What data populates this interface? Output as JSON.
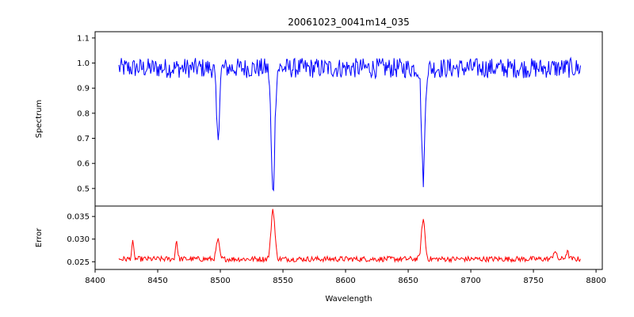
{
  "chart_data": [
    {
      "type": "line",
      "title": "20061023_0041m14_035",
      "xlabel": "",
      "ylabel": "Spectrum",
      "xlim": [
        8400,
        8805
      ],
      "ylim": [
        0.43,
        1.125
      ],
      "yticks": [
        0.5,
        0.6,
        0.7,
        0.8,
        0.9,
        1.0,
        1.1
      ],
      "ytick_labels": [
        "0.5",
        "0.6",
        "0.7",
        "0.8",
        "0.9",
        "1.0",
        "1.1"
      ],
      "grid": false,
      "legend": "none",
      "series": [
        {
          "color": "#0000ff",
          "x_range": [
            8419,
            8788
          ],
          "continuum": 0.98,
          "noise_amplitude": 0.04,
          "absorption_lines": [
            {
              "x": 8498,
              "depth": 0.28,
              "width": 1.2
            },
            {
              "x": 8542,
              "depth": 0.5,
              "width": 1.4
            },
            {
              "x": 8662,
              "depth": 0.44,
              "width": 1.3
            }
          ]
        }
      ]
    },
    {
      "type": "line",
      "title": "",
      "xlabel": "Wavelength",
      "ylabel": "Error",
      "xlim": [
        8400,
        8805
      ],
      "ylim": [
        0.0233,
        0.0373
      ],
      "xticks": [
        8400,
        8450,
        8500,
        8550,
        8600,
        8650,
        8700,
        8750,
        8800
      ],
      "xtick_labels": [
        "8400",
        "8450",
        "8500",
        "8550",
        "8600",
        "8650",
        "8700",
        "8750",
        "8800"
      ],
      "yticks": [
        0.025,
        0.03,
        0.035
      ],
      "ytick_labels": [
        "0.025",
        "0.030",
        "0.035"
      ],
      "grid": false,
      "legend": "none",
      "series": [
        {
          "color": "#ff0000",
          "x_range": [
            8419,
            8788
          ],
          "baseline": 0.0256,
          "noise_amplitude": 0.0006,
          "peaks": [
            {
              "x": 8430,
              "height": 0.0036,
              "width": 0.8
            },
            {
              "x": 8465,
              "height": 0.0042,
              "width": 0.8
            },
            {
              "x": 8498,
              "height": 0.0042,
              "width": 1.2
            },
            {
              "x": 8542,
              "height": 0.011,
              "width": 1.5
            },
            {
              "x": 8662,
              "height": 0.0088,
              "width": 1.4
            },
            {
              "x": 8767,
              "height": 0.0018,
              "width": 1.2
            },
            {
              "x": 8777,
              "height": 0.0015,
              "width": 1.2
            }
          ]
        }
      ]
    }
  ]
}
